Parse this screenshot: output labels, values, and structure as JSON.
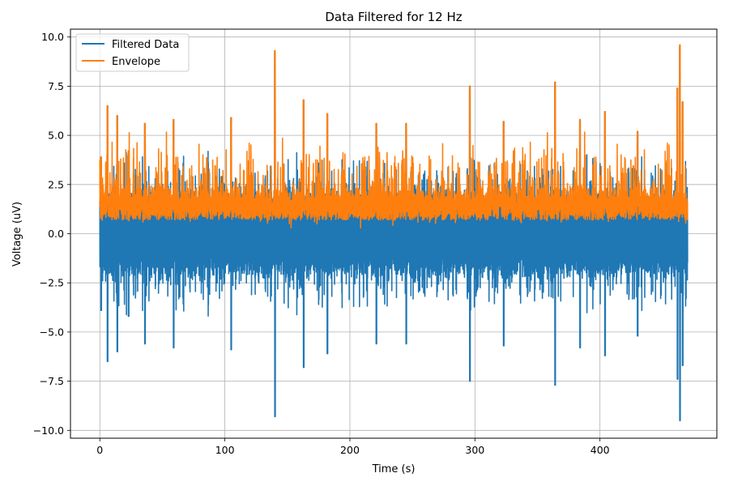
{
  "chart_data": {
    "type": "line",
    "title": "Data Filtered for 12 Hz",
    "xlabel": "Time (s)",
    "ylabel": "Voltage (uV)",
    "xlim": [
      -23.5,
      493.5
    ],
    "ylim": [
      -10.4,
      10.4
    ],
    "xticks": [
      0,
      100,
      200,
      300,
      400
    ],
    "yticks": [
      -10.0,
      -7.5,
      -5.0,
      -2.5,
      0.0,
      2.5,
      5.0,
      7.5,
      10.0
    ],
    "grid": true,
    "legend_position": "upper-left",
    "data_range": {
      "x_start": 0,
      "x_end": 470
    },
    "series": [
      {
        "name": "Filtered Data",
        "color": "#1f77b4",
        "typical_band": [
          -3.0,
          3.0
        ],
        "peak_events": [
          {
            "x": 1,
            "min": -3.9,
            "max": 3.9
          },
          {
            "x": 6,
            "min": -6.5,
            "max": 6.5
          },
          {
            "x": 14,
            "min": -6.0,
            "max": 6.0
          },
          {
            "x": 23,
            "min": -4.2,
            "max": 4.2
          },
          {
            "x": 36,
            "min": -5.6,
            "max": 5.6
          },
          {
            "x": 59,
            "min": -5.8,
            "max": 5.8
          },
          {
            "x": 105,
            "min": -5.9,
            "max": 5.9
          },
          {
            "x": 140,
            "min": -9.3,
            "max": 9.3
          },
          {
            "x": 163,
            "min": -6.8,
            "max": 6.8
          },
          {
            "x": 182,
            "min": -6.1,
            "max": 6.1
          },
          {
            "x": 221,
            "min": -5.6,
            "max": 5.6
          },
          {
            "x": 245,
            "min": -5.6,
            "max": 5.6
          },
          {
            "x": 296,
            "min": -7.5,
            "max": 7.5
          },
          {
            "x": 323,
            "min": -5.7,
            "max": 5.7
          },
          {
            "x": 364,
            "min": -7.7,
            "max": 7.7
          },
          {
            "x": 384,
            "min": -5.8,
            "max": 5.8
          },
          {
            "x": 404,
            "min": -6.2,
            "max": 6.2
          },
          {
            "x": 430,
            "min": -5.2,
            "max": 5.2
          },
          {
            "x": 462,
            "min": -7.4,
            "max": 7.4
          },
          {
            "x": 464,
            "min": -9.5,
            "max": 9.5
          },
          {
            "x": 466,
            "min": -6.7,
            "max": 6.7
          }
        ]
      },
      {
        "name": "Envelope",
        "color": "#ff7f0e",
        "typical_band": [
          0.3,
          3.3
        ],
        "peak_events": [
          {
            "x": 1,
            "max": 3.9
          },
          {
            "x": 6,
            "max": 6.5
          },
          {
            "x": 14,
            "max": 6.0
          },
          {
            "x": 23,
            "max": 4.2
          },
          {
            "x": 36,
            "max": 5.6
          },
          {
            "x": 59,
            "max": 5.8
          },
          {
            "x": 105,
            "max": 5.9
          },
          {
            "x": 140,
            "max": 9.3
          },
          {
            "x": 163,
            "max": 6.8
          },
          {
            "x": 182,
            "max": 6.1
          },
          {
            "x": 221,
            "max": 5.6
          },
          {
            "x": 245,
            "max": 5.6
          },
          {
            "x": 296,
            "max": 7.5
          },
          {
            "x": 323,
            "max": 5.7
          },
          {
            "x": 364,
            "max": 7.7
          },
          {
            "x": 384,
            "max": 5.8
          },
          {
            "x": 404,
            "max": 6.2
          },
          {
            "x": 430,
            "max": 5.2
          },
          {
            "x": 462,
            "max": 7.4
          },
          {
            "x": 464,
            "max": 9.6
          },
          {
            "x": 466,
            "max": 6.7
          }
        ]
      }
    ]
  }
}
